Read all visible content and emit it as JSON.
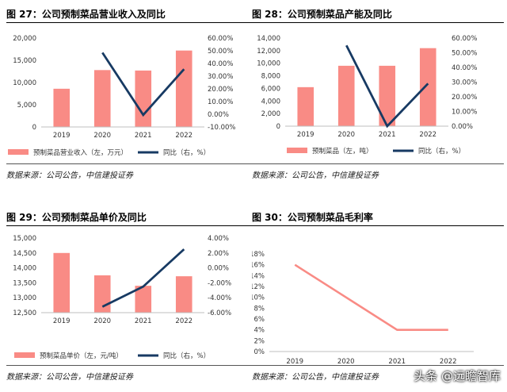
{
  "source": "数据来源：公司公告，中信建投证券",
  "watermark": "头条 @远瞻智库",
  "colors": {
    "bar": "#f98b85",
    "line": "#173a63"
  },
  "chart_data": [
    {
      "type": "bar",
      "title": "图 27：公司预制菜品营业收入及同比",
      "categories": [
        "2019",
        "2020",
        "2021",
        "2022"
      ],
      "series": [
        {
          "name": "预制菜品营业收入（左，万元）",
          "type": "bar",
          "axis": "left",
          "values": [
            8600,
            12800,
            12700,
            17200
          ]
        },
        {
          "name": "同比（右，%）",
          "type": "line",
          "axis": "right",
          "values": [
            null,
            48.5,
            -0.5,
            35.5
          ]
        }
      ],
      "ylim_left": [
        0,
        20000
      ],
      "yticks_left": [
        "0",
        "5,000",
        "10,000",
        "15,000",
        "20,000"
      ],
      "ylim_right": [
        -10,
        60
      ],
      "yticks_right": [
        "-10.00%",
        "0.00%",
        "10.00%",
        "20.00%",
        "30.00%",
        "40.00%",
        "50.00%",
        "60.00%"
      ],
      "legend_position": "bottom"
    },
    {
      "type": "bar",
      "title": "图 28：公司预制菜品产能及同比",
      "categories": [
        "2019",
        "2020",
        "2021",
        "2022"
      ],
      "series": [
        {
          "name": "预制菜品（左，吨）",
          "type": "bar",
          "axis": "left",
          "values": [
            6200,
            9600,
            9600,
            12400
          ]
        },
        {
          "name": "同比（右，%）",
          "type": "line",
          "axis": "right",
          "values": [
            null,
            55,
            0,
            29
          ]
        }
      ],
      "ylim_left": [
        0,
        14000
      ],
      "yticks_left": [
        "0",
        "2,000",
        "4,000",
        "6,000",
        "8,000",
        "10,000",
        "12,000",
        "14,000"
      ],
      "ylim_right": [
        0,
        60
      ],
      "yticks_right": [
        "0.00%",
        "10.00%",
        "20.00%",
        "30.00%",
        "40.00%",
        "50.00%",
        "60.00%"
      ],
      "legend_position": "bottom"
    },
    {
      "type": "bar",
      "title": "图 29：公司预制菜品单价及同比",
      "categories": [
        "2019",
        "2020",
        "2021",
        "2022"
      ],
      "series": [
        {
          "name": "预制菜品单价（左，元/吨）",
          "type": "bar",
          "axis": "left",
          "values": [
            14500,
            13750,
            13400,
            13720
          ]
        },
        {
          "name": "同比（右，%）",
          "type": "line",
          "axis": "right",
          "values": [
            null,
            -5.2,
            -2.5,
            2.5
          ]
        }
      ],
      "ylim_left": [
        12500,
        15000
      ],
      "yticks_left": [
        "12,500",
        "13,000",
        "13,500",
        "14,000",
        "14,500",
        "15,000"
      ],
      "ylim_right": [
        -6,
        4
      ],
      "yticks_right": [
        "-6.00%",
        "-4.00%",
        "-2.00%",
        "0.00%",
        "2.00%",
        "4.00%"
      ],
      "legend_position": "bottom"
    },
    {
      "type": "line",
      "title": "图 30：公司预制菜品毛利率",
      "categories": [
        "2019",
        "2020",
        "2021",
        "2022"
      ],
      "series": [
        {
          "values": [
            16,
            10,
            4,
            4
          ]
        }
      ],
      "ylim": [
        0,
        18
      ],
      "yticks": [
        "0%",
        "2%",
        "4%",
        "6%",
        "8%",
        "10%",
        "12%",
        "14%",
        "16%",
        "18%"
      ]
    }
  ]
}
